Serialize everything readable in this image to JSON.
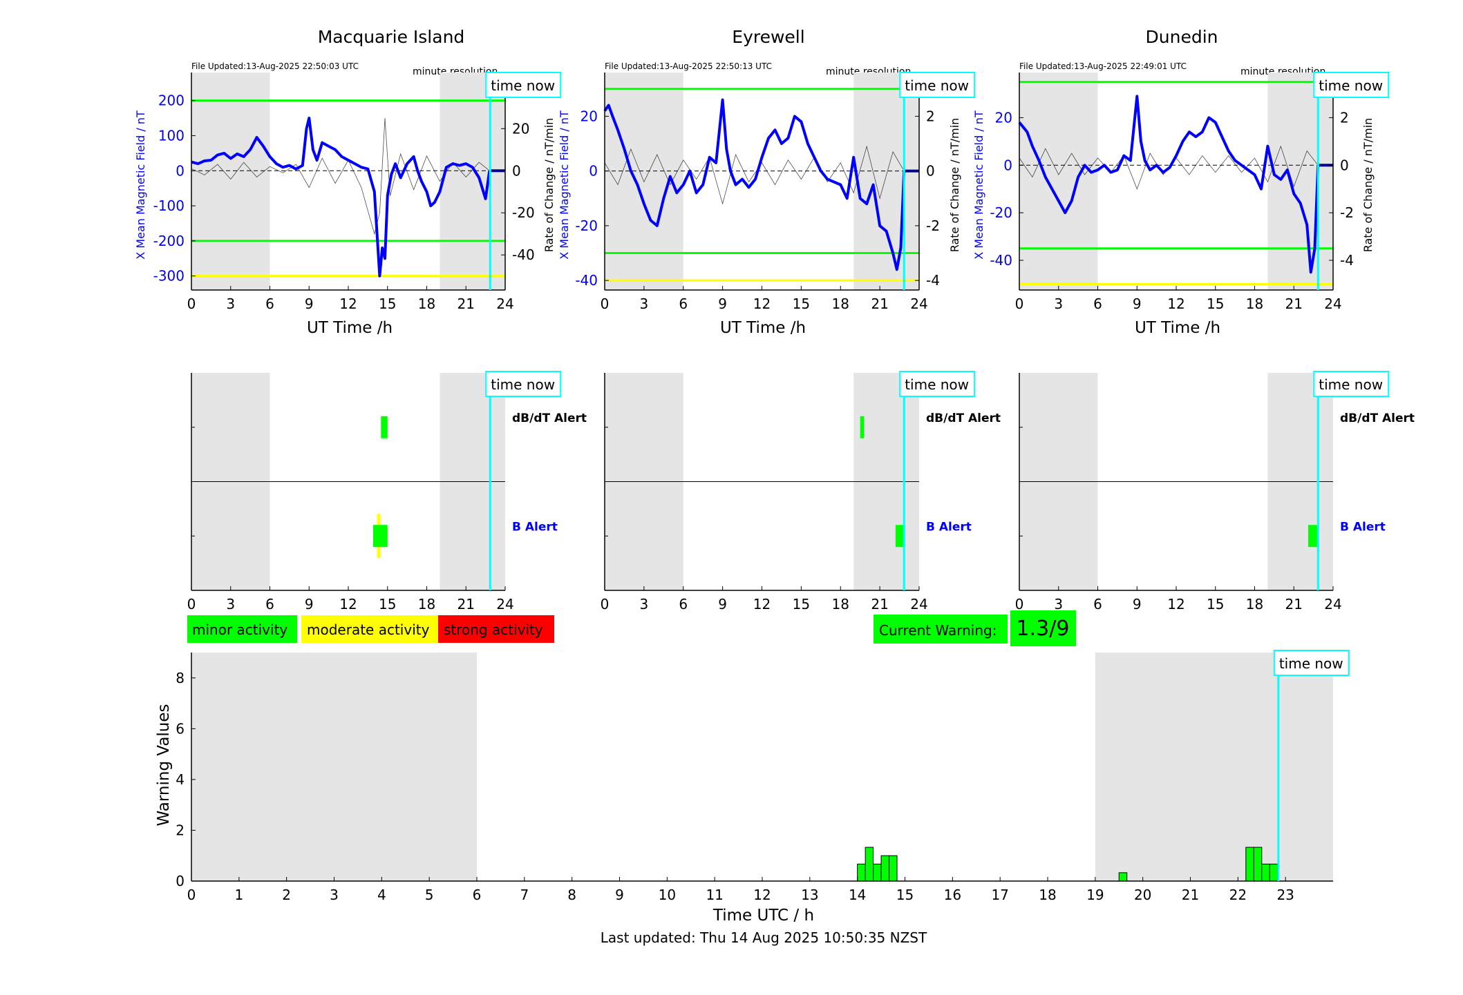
{
  "footer": "Last updated: Thu 14 Aug 2025 10:50:35 NZST",
  "legend": [
    {
      "label": "minor activity",
      "color": "#00ff00"
    },
    {
      "label": "moderate activity",
      "color": "#ffff00"
    },
    {
      "label": "strong activity",
      "color": "#ff0000"
    }
  ],
  "current_warning": {
    "label": "Current Warning:",
    "value": "1.3/9",
    "color": "#00ff00"
  },
  "colors": {
    "field_line": "#0000ff",
    "rate_line": "#000000",
    "threshold_minor": "#00ff00",
    "threshold_moderate": "#ffff00",
    "time_now": "#00ffff",
    "night_shading": "#e5e5e5"
  },
  "chart_data": [
    {
      "type": "line",
      "title": "Macquarie Island",
      "file_updated": "File Updated:13-Aug-2025 22:50:03 UTC",
      "resolution": "minute resolution",
      "time_now_label": "time now",
      "xlabel": "UT Time /h",
      "ylabel_left": "X Mean Magnetic Field / nT",
      "ylabel_right": "Rate of Change / nT/min",
      "xlim": [
        0,
        24
      ],
      "ylim_left": [
        -340,
        280
      ],
      "ylim_right": [
        -56.67,
        46.67
      ],
      "xticks": [
        "0",
        "3",
        "6",
        "9",
        "12",
        "15",
        "18",
        "21",
        "24"
      ],
      "yticks_left": [
        "200",
        "100",
        "0",
        "-100",
        "-200",
        "-300"
      ],
      "yticks_right": [
        "40",
        "20",
        "0",
        "-20",
        "-40"
      ],
      "thresholds": {
        "minor": [
          200,
          -200
        ],
        "moderate": [
          -300
        ]
      },
      "night_bands": [
        [
          0,
          6
        ],
        [
          19,
          24
        ]
      ],
      "time_now": 22.85,
      "series": [
        {
          "axis": "left",
          "x": [
            0,
            0.5,
            1,
            1.5,
            2,
            2.5,
            3,
            3.5,
            4,
            4.5,
            5,
            5.5,
            6,
            6.5,
            7,
            7.5,
            8,
            8.5,
            8.8,
            9,
            9.3,
            9.6,
            10,
            10.5,
            11,
            11.5,
            12,
            12.5,
            13,
            13.5,
            14,
            14.2,
            14.4,
            14.6,
            14.8,
            15,
            15.3,
            15.6,
            16,
            16.5,
            17,
            17.3,
            17.6,
            18,
            18.3,
            18.6,
            19,
            19.5,
            20,
            20.5,
            21,
            21.5,
            22,
            22.5,
            22.8
          ],
          "values": [
            25,
            20,
            28,
            30,
            45,
            50,
            35,
            48,
            40,
            60,
            95,
            70,
            40,
            20,
            10,
            15,
            5,
            15,
            120,
            150,
            60,
            30,
            80,
            70,
            60,
            40,
            30,
            20,
            10,
            5,
            -60,
            -180,
            -300,
            -220,
            -250,
            -70,
            -10,
            20,
            -20,
            20,
            40,
            0,
            -30,
            -60,
            -100,
            -90,
            -60,
            10,
            20,
            15,
            20,
            10,
            -20,
            -80,
            0
          ]
        },
        {
          "axis": "right",
          "x": [
            0,
            1,
            2,
            3,
            4,
            5,
            6,
            7,
            8,
            9,
            10,
            11,
            12,
            13,
            14,
            14.4,
            14.8,
            15.2,
            16,
            17,
            18,
            19,
            20,
            21,
            22,
            22.8
          ],
          "values": [
            1,
            -2,
            3,
            -4,
            4,
            -3,
            2,
            -1,
            3,
            -8,
            6,
            -6,
            5,
            -8,
            -30,
            -20,
            25,
            -12,
            8,
            -9,
            7,
            -5,
            4,
            -3,
            4,
            0
          ]
        }
      ]
    },
    {
      "type": "line",
      "title": "Eyrewell",
      "file_updated": "File Updated:13-Aug-2025 22:50:13 UTC",
      "resolution": "minute resolution",
      "time_now_label": "time now",
      "xlabel": "UT Time /h",
      "ylabel_left": "X Mean Magnetic Field / nT",
      "ylabel_right": "Rate of Change / nT/min",
      "xlim": [
        0,
        24
      ],
      "ylim_left": [
        -43.5,
        36
      ],
      "ylim_right": [
        -4.35,
        3.6
      ],
      "xticks": [
        "0",
        "3",
        "6",
        "9",
        "12",
        "15",
        "18",
        "21",
        "24"
      ],
      "yticks_left": [
        "20",
        "0",
        "-20",
        "-40"
      ],
      "yticks_right": [
        "2",
        "0",
        "-2",
        "-4"
      ],
      "thresholds": {
        "minor": [
          30,
          -30
        ],
        "moderate": [
          -40
        ]
      },
      "night_bands": [
        [
          0,
          6
        ],
        [
          19,
          24
        ]
      ],
      "time_now": 22.85,
      "series": [
        {
          "axis": "left",
          "x": [
            0,
            0.3,
            0.6,
            1,
            1.5,
            2,
            2.5,
            3,
            3.5,
            4,
            4.5,
            5,
            5.5,
            6,
            6.5,
            7,
            7.5,
            8,
            8.5,
            9,
            9.3,
            9.6,
            10,
            10.5,
            11,
            11.5,
            12,
            12.5,
            13,
            13.5,
            14,
            14.5,
            15,
            15.5,
            16,
            16.5,
            17,
            17.5,
            18,
            18.5,
            19,
            19.5,
            20,
            20.5,
            21,
            21.5,
            22,
            22.3,
            22.6,
            22.85
          ],
          "values": [
            22,
            24,
            20,
            15,
            8,
            0,
            -5,
            -12,
            -18,
            -20,
            -10,
            -2,
            -8,
            -5,
            0,
            -8,
            -5,
            5,
            3,
            26,
            8,
            0,
            -5,
            -3,
            -6,
            -3,
            5,
            12,
            15,
            10,
            12,
            20,
            18,
            10,
            5,
            0,
            -3,
            -4,
            -5,
            -10,
            5,
            -10,
            -12,
            -5,
            -20,
            -22,
            -30,
            -36,
            -28,
            0
          ]
        },
        {
          "axis": "right",
          "x": [
            0,
            1,
            2,
            3,
            4,
            5,
            6,
            7,
            8,
            9,
            10,
            11,
            12,
            13,
            14,
            15,
            16,
            17,
            18,
            19,
            20,
            21,
            22,
            22.85
          ],
          "values": [
            0.3,
            -0.5,
            0.8,
            -0.4,
            0.6,
            -0.5,
            0.4,
            -0.3,
            0.5,
            -1.2,
            0.6,
            -0.4,
            0.3,
            -0.5,
            0.4,
            -0.3,
            0.5,
            -0.4,
            0.3,
            -0.8,
            0.9,
            -1,
            0.7,
            0
          ]
        }
      ]
    },
    {
      "type": "line",
      "title": "Dunedin",
      "file_updated": "File Updated:13-Aug-2025 22:49:01 UTC",
      "resolution": "minute resolution",
      "time_now_label": "time now",
      "xlabel": "UT Time /h",
      "ylabel_left": "X Mean Magnetic Field / nT",
      "ylabel_right": "Rate of Change / nT/min",
      "xlim": [
        0,
        24
      ],
      "ylim_left": [
        -52.5,
        39
      ],
      "ylim_right": [
        -5.25,
        3.9
      ],
      "xticks": [
        "0",
        "3",
        "6",
        "9",
        "12",
        "15",
        "18",
        "21",
        "24"
      ],
      "yticks_left": [
        "20",
        "0",
        "-20",
        "-40"
      ],
      "yticks_right": [
        "2",
        "0",
        "-2",
        "-4"
      ],
      "thresholds": {
        "minor": [
          35,
          -35
        ],
        "moderate": [
          -50
        ]
      },
      "night_bands": [
        [
          0,
          6
        ],
        [
          19,
          24
        ]
      ],
      "time_now": 22.85,
      "series": [
        {
          "axis": "left",
          "x": [
            0,
            0.3,
            0.6,
            1,
            1.5,
            2,
            2.5,
            3,
            3.5,
            4,
            4.5,
            5,
            5.5,
            6,
            6.5,
            7,
            7.5,
            8,
            8.5,
            9,
            9.3,
            9.6,
            10,
            10.5,
            11,
            11.5,
            12,
            12.5,
            13,
            13.5,
            14,
            14.5,
            15,
            15.5,
            16,
            16.5,
            17,
            17.5,
            18,
            18.5,
            19,
            19.5,
            20,
            20.5,
            21,
            21.5,
            22,
            22.3,
            22.6,
            22.85
          ],
          "values": [
            18,
            16,
            14,
            8,
            2,
            -5,
            -10,
            -15,
            -20,
            -15,
            -5,
            0,
            -3,
            -2,
            0,
            -3,
            -2,
            4,
            2,
            29,
            10,
            2,
            -2,
            0,
            -3,
            -1,
            4,
            10,
            14,
            12,
            14,
            20,
            18,
            12,
            6,
            2,
            0,
            -2,
            -4,
            -10,
            8,
            -4,
            -6,
            -2,
            -12,
            -16,
            -25,
            -45,
            -35,
            0
          ]
        },
        {
          "axis": "right",
          "x": [
            0,
            1,
            2,
            3,
            4,
            5,
            6,
            7,
            8,
            9,
            10,
            11,
            12,
            13,
            14,
            15,
            16,
            17,
            18,
            19,
            20,
            21,
            22,
            22.85
          ],
          "values": [
            0.3,
            -0.5,
            0.7,
            -0.4,
            0.5,
            -0.4,
            0.3,
            -0.3,
            0.4,
            -1,
            0.5,
            -0.4,
            0.3,
            -0.4,
            0.4,
            -0.3,
            0.4,
            -0.3,
            0.3,
            -0.7,
            0.8,
            -0.9,
            0.6,
            0
          ]
        }
      ]
    },
    {
      "type": "bar",
      "title": "",
      "time_now_label": "time now",
      "xlim": [
        0,
        24
      ],
      "xticks": [
        "0",
        "3",
        "6",
        "9",
        "12",
        "15",
        "18",
        "21",
        "24"
      ],
      "night_bands": [
        [
          0,
          6
        ],
        [
          19,
          24
        ]
      ],
      "time_now": 22.85,
      "rows": [
        "dB/dT Alert",
        "B Alert"
      ],
      "alerts": [
        {
          "row": "dB/dT Alert",
          "start": 14.5,
          "end": 15.0,
          "level": "minor"
        },
        {
          "row": "B Alert",
          "start": 14.2,
          "end": 14.35,
          "level": "moderate"
        },
        {
          "row": "B Alert",
          "start": 13.9,
          "end": 15.0,
          "level": "minor"
        }
      ]
    },
    {
      "type": "bar",
      "title": "",
      "time_now_label": "time now",
      "xlim": [
        0,
        24
      ],
      "xticks": [
        "0",
        "3",
        "6",
        "9",
        "12",
        "15",
        "18",
        "21",
        "24"
      ],
      "night_bands": [
        [
          0,
          6
        ],
        [
          19,
          24
        ]
      ],
      "time_now": 22.85,
      "rows": [
        "dB/dT Alert",
        "B Alert"
      ],
      "alerts": [
        {
          "row": "dB/dT Alert",
          "start": 19.5,
          "end": 19.8,
          "level": "minor"
        },
        {
          "row": "B Alert",
          "start": 22.2,
          "end": 22.8,
          "level": "minor"
        }
      ]
    },
    {
      "type": "bar",
      "title": "",
      "time_now_label": "time now",
      "xlim": [
        0,
        24
      ],
      "xticks": [
        "0",
        "3",
        "6",
        "9",
        "12",
        "15",
        "18",
        "21",
        "24"
      ],
      "night_bands": [
        [
          0,
          6
        ],
        [
          19,
          24
        ]
      ],
      "time_now": 22.85,
      "rows": [
        "dB/dT Alert",
        "B Alert"
      ],
      "alerts": [
        {
          "row": "B Alert",
          "start": 22.1,
          "end": 22.8,
          "level": "minor"
        }
      ]
    },
    {
      "type": "bar",
      "title": "",
      "time_now_label": "time now",
      "xlabel": "Time UTC / h",
      "ylabel": "Warning Values",
      "xlim": [
        0,
        24
      ],
      "ylim": [
        0,
        9
      ],
      "xticks": [
        "0",
        "1",
        "2",
        "3",
        "4",
        "5",
        "6",
        "7",
        "8",
        "9",
        "10",
        "11",
        "12",
        "13",
        "14",
        "15",
        "16",
        "17",
        "18",
        "19",
        "20",
        "21",
        "22",
        "23"
      ],
      "yticks": [
        "0",
        "2",
        "4",
        "6",
        "8"
      ],
      "night_bands": [
        [
          0,
          6
        ],
        [
          19,
          24
        ]
      ],
      "time_now": 22.85,
      "bar_width": 0.1667,
      "x": [
        14.083,
        14.25,
        14.417,
        14.583,
        14.75,
        19.583,
        22.25,
        22.417,
        22.583,
        22.75
      ],
      "values": [
        0.67,
        1.33,
        0.67,
        1.0,
        1.0,
        0.33,
        1.33,
        1.33,
        0.67,
        0.67
      ]
    }
  ]
}
